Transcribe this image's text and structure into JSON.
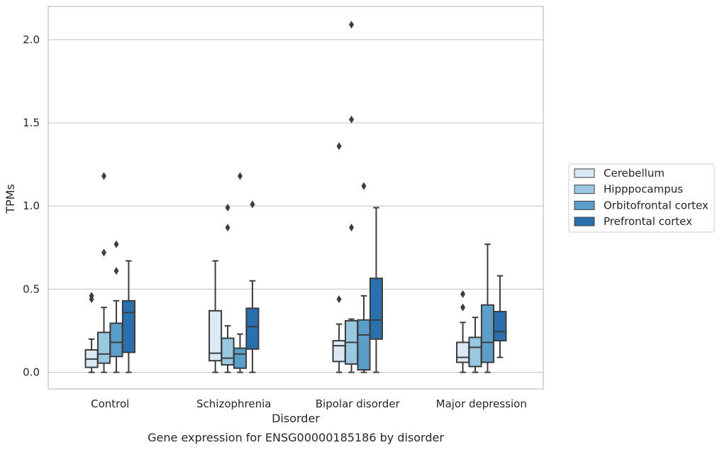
{
  "chart_data": {
    "type": "box",
    "xlabel": "Disorder",
    "ylabel": "TPMs",
    "caption": "Gene expression for ENSG00000185186 by disorder",
    "ylim": [
      -0.1,
      2.2
    ],
    "yticks": [
      "0.0",
      "0.5",
      "1.0",
      "1.5",
      "2.0"
    ],
    "grid": "horizontal",
    "legend_position": "right",
    "categories": [
      "Control",
      "Schizophrenia",
      "Bipolar disorder",
      "Major depression"
    ],
    "series": [
      {
        "name": "Cerebellum",
        "color": "#dbe9f6",
        "boxes": [
          {
            "whislo": 0.0,
            "q1": 0.03,
            "med": 0.08,
            "q3": 0.135,
            "whishi": 0.2,
            "fliers": [
              0.44,
              0.46
            ]
          },
          {
            "whislo": 0.0,
            "q1": 0.07,
            "med": 0.115,
            "q3": 0.37,
            "whishi": 0.67,
            "fliers": []
          },
          {
            "whislo": 0.0,
            "q1": 0.065,
            "med": 0.16,
            "q3": 0.19,
            "whishi": 0.29,
            "fliers": [
              0.44,
              1.36
            ]
          },
          {
            "whislo": 0.0,
            "q1": 0.06,
            "med": 0.09,
            "q3": 0.18,
            "whishi": 0.3,
            "fliers": [
              0.39,
              0.47
            ]
          }
        ]
      },
      {
        "name": "Hipppocampus",
        "color": "#9ac8e0",
        "boxes": [
          {
            "whislo": 0.0,
            "q1": 0.055,
            "med": 0.11,
            "q3": 0.24,
            "whishi": 0.39,
            "fliers": [
              0.72,
              1.18
            ]
          },
          {
            "whislo": 0.0,
            "q1": 0.045,
            "med": 0.085,
            "q3": 0.205,
            "whishi": 0.28,
            "fliers": [
              0.87,
              0.99
            ]
          },
          {
            "whislo": 0.0,
            "q1": 0.05,
            "med": 0.18,
            "q3": 0.31,
            "whishi": 0.32,
            "fliers": [
              0.87,
              1.52,
              2.09
            ]
          },
          {
            "whislo": 0.0,
            "q1": 0.035,
            "med": 0.15,
            "q3": 0.21,
            "whishi": 0.33,
            "fliers": []
          }
        ]
      },
      {
        "name": "Orbitofrontal cortex",
        "color": "#5a9ec9",
        "boxes": [
          {
            "whislo": 0.0,
            "q1": 0.095,
            "med": 0.18,
            "q3": 0.295,
            "whishi": 0.43,
            "fliers": [
              0.61,
              0.77
            ]
          },
          {
            "whislo": 0.0,
            "q1": 0.025,
            "med": 0.11,
            "q3": 0.145,
            "whishi": 0.23,
            "fliers": [
              1.18
            ]
          },
          {
            "whislo": 0.0,
            "q1": 0.015,
            "med": 0.225,
            "q3": 0.315,
            "whishi": 0.46,
            "fliers": [
              1.12
            ]
          },
          {
            "whislo": 0.0,
            "q1": 0.06,
            "med": 0.18,
            "q3": 0.405,
            "whishi": 0.77,
            "fliers": []
          }
        ]
      },
      {
        "name": "Prefrontal cortex",
        "color": "#2a6fae",
        "boxes": [
          {
            "whislo": 0.0,
            "q1": 0.12,
            "med": 0.36,
            "q3": 0.43,
            "whishi": 0.67,
            "fliers": []
          },
          {
            "whislo": 0.0,
            "q1": 0.14,
            "med": 0.275,
            "q3": 0.385,
            "whishi": 0.55,
            "fliers": [
              1.01
            ]
          },
          {
            "whislo": 0.0,
            "q1": 0.2,
            "med": 0.315,
            "q3": 0.565,
            "whishi": 0.99,
            "fliers": []
          },
          {
            "whislo": 0.09,
            "q1": 0.19,
            "med": 0.245,
            "q3": 0.365,
            "whishi": 0.58,
            "fliers": []
          }
        ]
      }
    ]
  }
}
